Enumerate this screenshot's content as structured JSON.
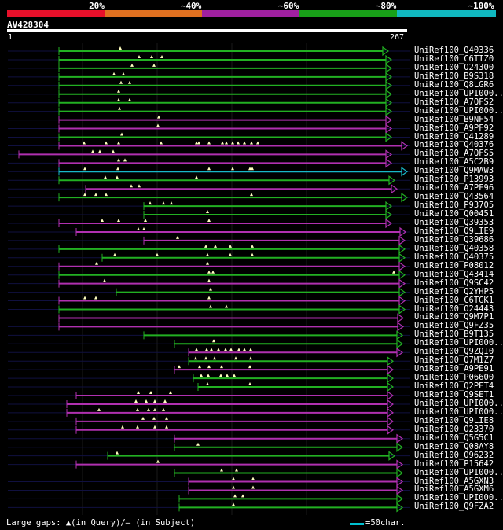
{
  "percent_labels": [
    "20%",
    "~40%",
    "~60%",
    "~80%",
    "~100%"
  ],
  "band_colors": [
    "#e8102a",
    "#e07020",
    "#a020a0",
    "#18a018",
    "#10b8c0"
  ],
  "query": {
    "name": "AV428304",
    "start": "1",
    "end": "267"
  },
  "colors": {
    "green": "#22b022",
    "purple": "#b030b0",
    "cyan": "#18b8c8",
    "faint": "#101040"
  },
  "rows": [
    {
      "label": "UniRef100_Q40336",
      "c": "g"
    },
    {
      "label": "UniRef100_C6TIZ0",
      "c": "g"
    },
    {
      "label": "UniRef100_O24300",
      "c": "g"
    },
    {
      "label": "UniRef100_B9S318",
      "c": "g"
    },
    {
      "label": "UniRef100_Q8LGR6",
      "c": "g"
    },
    {
      "label": "UniRef100_UPI000..",
      "c": "g"
    },
    {
      "label": "UniRef100_A7QFS2",
      "c": "g"
    },
    {
      "label": "UniRef100_UPI000..",
      "c": "g"
    },
    {
      "label": "UniRef100_B9NF54",
      "c": "p"
    },
    {
      "label": "UniRef100_A9PF92",
      "c": "p"
    },
    {
      "label": "UniRef100_Q41289",
      "c": "g"
    },
    {
      "label": "UniRef100_Q40376",
      "c": "p"
    },
    {
      "label": "UniRef100_A7QFS5",
      "c": "p"
    },
    {
      "label": "UniRef100_A5C2B9",
      "c": "p"
    },
    {
      "label": "UniRef100_Q9MAW3",
      "c": "c"
    },
    {
      "label": "UniRef100_P13993",
      "c": "g"
    },
    {
      "label": "UniRef100_A7PF96",
      "c": "p"
    },
    {
      "label": "UniRef100_Q43564",
      "c": "g"
    },
    {
      "label": "UniRef100_P93705",
      "c": "g"
    },
    {
      "label": "UniRef100_Q00451",
      "c": "g"
    },
    {
      "label": "UniRef100_Q39353",
      "c": "p"
    },
    {
      "label": "UniRef100_Q9LIE9",
      "c": "p"
    },
    {
      "label": "UniRef100_Q39686",
      "c": "p"
    },
    {
      "label": "UniRef100_Q40358",
      "c": "g"
    },
    {
      "label": "UniRef100_Q40375",
      "c": "g"
    },
    {
      "label": "UniRef100_P08012",
      "c": "p"
    },
    {
      "label": "UniRef100_Q43414",
      "c": "g"
    },
    {
      "label": "UniRef100_Q9SC42",
      "c": "p"
    },
    {
      "label": "UniRef100_Q2YHP5",
      "c": "g"
    },
    {
      "label": "UniRef100_C6TGK1",
      "c": "p"
    },
    {
      "label": "UniRef100_O24443",
      "c": "g"
    },
    {
      "label": "UniRef100_Q9M7P1",
      "c": "p"
    },
    {
      "label": "UniRef100_Q9FZ35",
      "c": "p"
    },
    {
      "label": "UniRef100_B9T135",
      "c": "g"
    },
    {
      "label": "UniRef100_UPI000..",
      "c": "g"
    },
    {
      "label": "UniRef100_Q9ZQI0",
      "c": "p"
    },
    {
      "label": "UniRef100_Q7M1Z7",
      "c": "g"
    },
    {
      "label": "UniRef100_A9PE91",
      "c": "p"
    },
    {
      "label": "UniRef100_P06600",
      "c": "g"
    },
    {
      "label": "UniRef100_Q2PET4",
      "c": "g"
    },
    {
      "label": "UniRef100_Q9SET1",
      "c": "p"
    },
    {
      "label": "UniRef100_UPI000..",
      "c": "p"
    },
    {
      "label": "UniRef100_UPI000..",
      "c": "p"
    },
    {
      "label": "UniRef100_Q9LIE8",
      "c": "p"
    },
    {
      "label": "UniRef100_O23370",
      "c": "p"
    },
    {
      "label": "UniRef100_Q5G5C1",
      "c": "p"
    },
    {
      "label": "UniRef100_Q08AY8",
      "c": "g"
    },
    {
      "label": "UniRef100_O96232",
      "c": "g"
    },
    {
      "label": "UniRef100_P15642",
      "c": "p"
    },
    {
      "label": "UniRef100_UPI000..",
      "c": "g"
    },
    {
      "label": "UniRef100_A5GXN3",
      "c": "p"
    },
    {
      "label": "UniRef100_A5GXM6",
      "c": "p"
    },
    {
      "label": "UniRef100_UPI000..",
      "c": "g"
    },
    {
      "label": "UniRef100_Q9FZA2",
      "c": "g"
    }
  ],
  "footer": {
    "text": "Large gaps: ▲(in Query)/— (in Subject)",
    "scale": "=50char."
  }
}
